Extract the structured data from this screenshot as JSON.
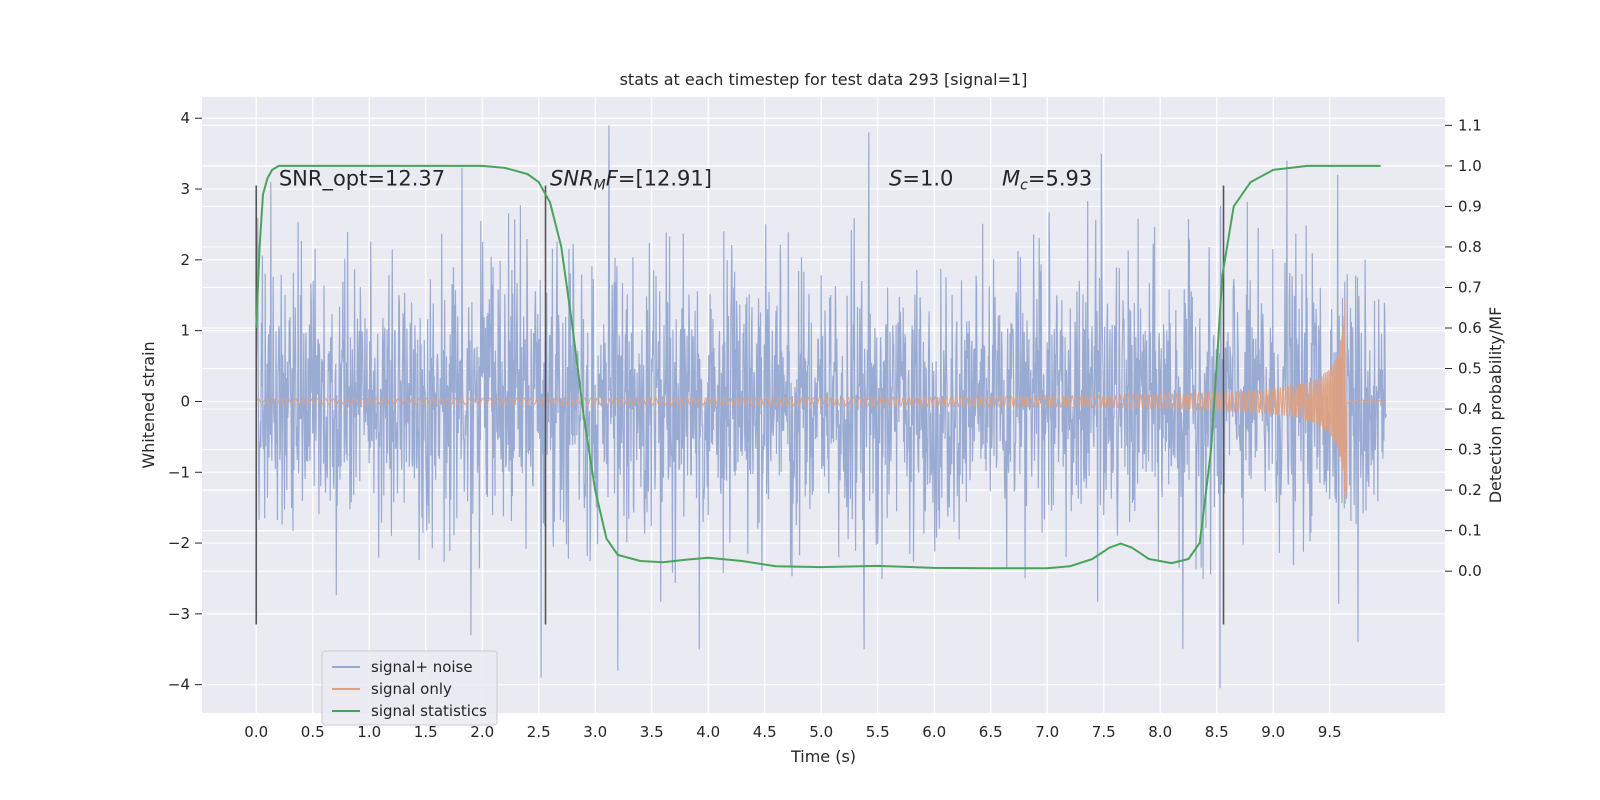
{
  "chart_data": {
    "type": "line",
    "title": "stats at each timestep for test data 293 [signal=1]",
    "xlabel": "Time (s)",
    "ylabel": "Whitened strain",
    "ylabel_right": "Detection probability/MF",
    "xlim": [
      -0.48,
      10.52
    ],
    "ylim": [
      -4.4,
      4.3
    ],
    "ylim_right": [
      -0.35,
      1.17
    ],
    "xticks": [
      0.0,
      0.5,
      1.0,
      1.5,
      2.0,
      2.5,
      3.0,
      3.5,
      4.0,
      4.5,
      5.0,
      5.5,
      6.0,
      6.5,
      7.0,
      7.5,
      8.0,
      8.5,
      9.0,
      9.5
    ],
    "xtick_labels": [
      "0.0",
      "0.5",
      "1.0",
      "1.5",
      "2.0",
      "2.5",
      "3.0",
      "3.5",
      "4.0",
      "4.5",
      "5.0",
      "5.5",
      "6.0",
      "6.5",
      "7.0",
      "7.5",
      "8.0",
      "8.5",
      "9.0",
      "9.5"
    ],
    "yticks": [
      -4,
      -3,
      -2,
      -1,
      0,
      1,
      2,
      3,
      4
    ],
    "ytick_labels": [
      "−4",
      "−3",
      "−2",
      "−1",
      "0",
      "1",
      "2",
      "3",
      "4"
    ],
    "yticks_right": [
      0.0,
      0.1,
      0.2,
      0.3,
      0.4,
      0.5,
      0.6,
      0.7,
      0.8,
      0.9,
      1.0,
      1.1
    ],
    "ytick_labels_right": [
      "0.0",
      "0.1",
      "0.2",
      "0.3",
      "0.4",
      "0.5",
      "0.6",
      "0.7",
      "0.8",
      "0.9",
      "1.0",
      "1.1"
    ],
    "grid": true,
    "legend_position": "lower-left",
    "annotations": [
      {
        "text": "SNR_opt=12.37",
        "x": 0.2,
        "y": 3.05
      },
      {
        "text_italic": "SNR",
        "subscript": "M",
        "text_after_sub_italic": "F",
        "text_rest": "=[12.91]",
        "x": 2.6,
        "y": 3.05
      },
      {
        "text_italic": "S",
        "text_rest": "=1.0",
        "x": 5.6,
        "y": 3.05
      },
      {
        "text_italic": "M",
        "subscript": "c",
        "text_rest": "=5.93",
        "x": 6.6,
        "y": 3.05
      }
    ],
    "vertical_markers": [
      0.0,
      2.56,
      8.56
    ],
    "vertical_marker_range": [
      -3.15,
      3.05
    ],
    "series": [
      {
        "name": "signal+ noise",
        "axis": "left",
        "color": "#9aabd3",
        "x_range": [
          0.0,
          10.0
        ],
        "envelope_typical": 1.8,
        "peak_max": 3.9,
        "trough_min": -4.1,
        "notable_peaks": [
          [
            0.13,
            3.1
          ],
          [
            1.82,
            3.3
          ],
          [
            3.12,
            3.9
          ],
          [
            5.42,
            3.8
          ],
          [
            7.48,
            3.5
          ],
          [
            9.12,
            3.4
          ],
          [
            9.57,
            3.2
          ]
        ],
        "notable_troughs": [
          [
            1.9,
            -3.3
          ],
          [
            2.52,
            -3.9
          ],
          [
            3.2,
            -3.8
          ],
          [
            3.92,
            -3.5
          ],
          [
            5.38,
            -3.5
          ],
          [
            8.2,
            -3.5
          ],
          [
            8.53,
            -4.05
          ],
          [
            9.75,
            -3.4
          ]
        ]
      },
      {
        "name": "signal only",
        "axis": "left",
        "color": "#e0a080",
        "chirp_start": 0.0,
        "chirp_end": 9.65,
        "chirp_amp_start": 0.02,
        "chirp_amp_end": 1.45,
        "chirp_min_end": -1.25,
        "post_merger_amp": 0.02
      },
      {
        "name": "signal statistics",
        "axis": "right",
        "color": "#4aa35a",
        "x": [
          0.0,
          0.03,
          0.06,
          0.1,
          0.14,
          0.2,
          0.3,
          0.5,
          1.0,
          1.5,
          2.0,
          2.2,
          2.4,
          2.5,
          2.6,
          2.7,
          2.8,
          2.9,
          3.0,
          3.1,
          3.2,
          3.4,
          3.6,
          3.8,
          4.0,
          4.3,
          4.6,
          5.0,
          5.5,
          6.0,
          6.5,
          7.0,
          7.2,
          7.4,
          7.55,
          7.65,
          7.75,
          7.9,
          8.1,
          8.25,
          8.35,
          8.45,
          8.55,
          8.65,
          8.8,
          9.0,
          9.3,
          9.6,
          9.95
        ],
        "values": [
          0.6,
          0.8,
          0.93,
          0.97,
          0.99,
          1.0,
          1.0,
          1.0,
          1.0,
          1.0,
          1.0,
          0.995,
          0.98,
          0.96,
          0.91,
          0.8,
          0.6,
          0.38,
          0.2,
          0.08,
          0.04,
          0.025,
          0.022,
          0.028,
          0.033,
          0.025,
          0.012,
          0.01,
          0.013,
          0.008,
          0.007,
          0.007,
          0.012,
          0.03,
          0.058,
          0.068,
          0.058,
          0.03,
          0.02,
          0.03,
          0.07,
          0.3,
          0.73,
          0.9,
          0.96,
          0.99,
          1.0,
          1.0,
          1.0
        ]
      }
    ]
  }
}
